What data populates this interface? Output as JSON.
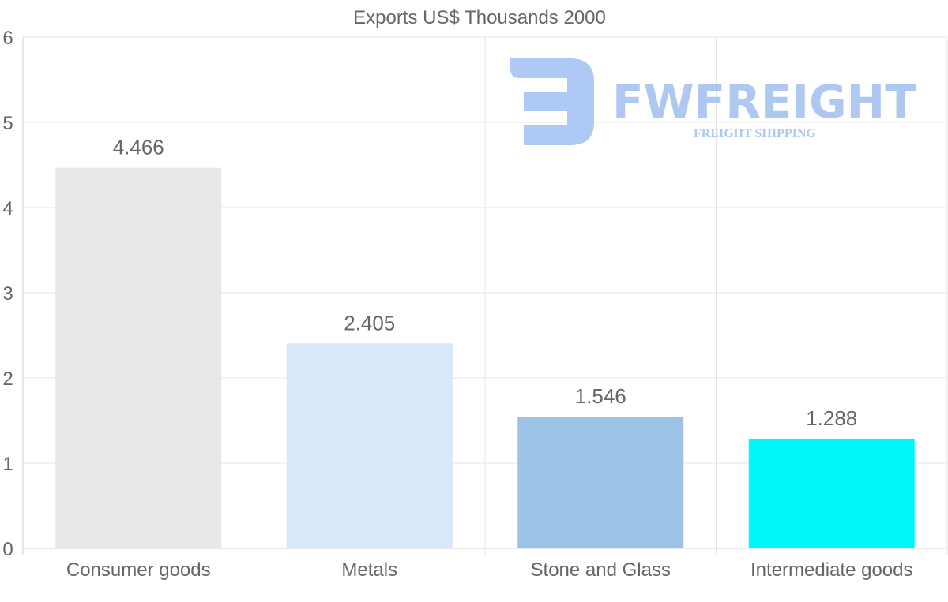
{
  "chart_data": {
    "type": "bar",
    "title": "Exports US$ Thousands 2000",
    "categories": [
      "Consumer goods",
      "Metals",
      "Stone and Glass",
      "Intermediate goods"
    ],
    "values": [
      4.466,
      2.405,
      1.546,
      1.288
    ],
    "value_labels": [
      "4.466",
      "2.405",
      "1.546",
      "1.288"
    ],
    "bar_colors": [
      "#e8e8e8",
      "#d8e7fa",
      "#9cc3e6",
      "#00f7f7"
    ],
    "xlabel": "",
    "ylabel": "",
    "ylim": [
      0,
      6
    ],
    "yticks": [
      "0",
      "1",
      "2",
      "3",
      "4",
      "5",
      "6"
    ],
    "grid": true,
    "legend": "none"
  },
  "watermark": {
    "brand": "FWFREIGHT",
    "tagline": "FREIGHT SHIPPING",
    "color": "#8fb4ee"
  }
}
